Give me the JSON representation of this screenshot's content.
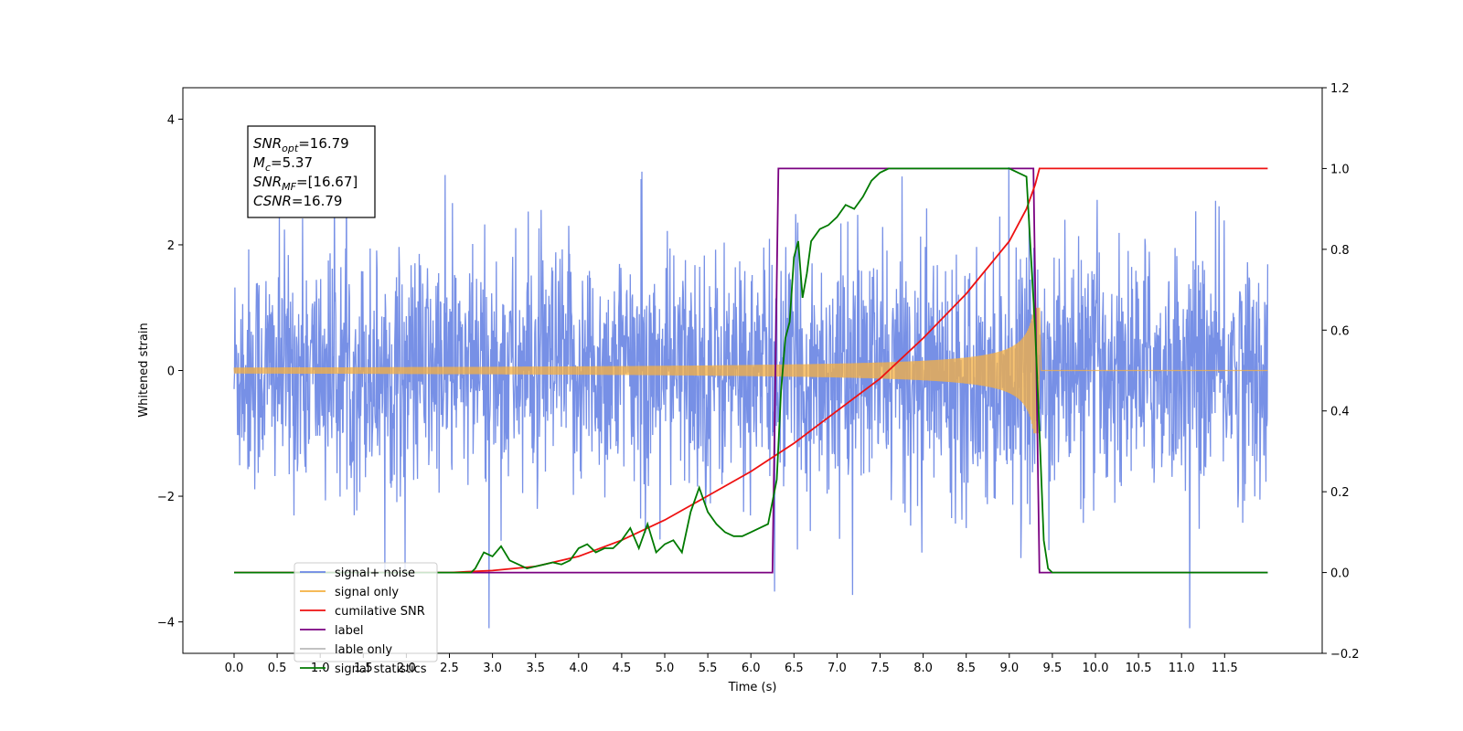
{
  "chart_data": {
    "type": "line",
    "xlabel": "Time (s)",
    "ylabel_left": "Whitened strain",
    "ylabel_right": "",
    "xlim": [
      -0.6,
      12.6
    ],
    "ylim_left": [
      -4.5,
      4.5
    ],
    "ylim_right": [
      -0.2,
      1.2
    ],
    "x_ticks": [
      0.0,
      0.5,
      1.0,
      1.5,
      2.0,
      2.5,
      3.0,
      3.5,
      4.0,
      4.5,
      5.0,
      5.5,
      6.0,
      6.5,
      7.0,
      7.5,
      8.0,
      8.5,
      9.0,
      9.5,
      10.0,
      10.5,
      11.0,
      11.5
    ],
    "x_tick_labels": [
      "0.0",
      "0.5",
      "1.0",
      "1.5",
      "2.0",
      "2.5",
      "3.0",
      "3.5",
      "4.0",
      "4.5",
      "5.0",
      "5.5",
      "6.0",
      "6.5",
      "7.0",
      "7.5",
      "8.0",
      "8.5",
      "9.0",
      "9.5",
      "10.0",
      "10.5",
      "11.0",
      "11.5"
    ],
    "y_ticks_left": [
      -4,
      -2,
      0,
      2,
      4
    ],
    "y_tick_labels_left": [
      "−4",
      "−2",
      "0",
      "2",
      "4"
    ],
    "y_ticks_right": [
      -0.2,
      0.0,
      0.2,
      0.4,
      0.6,
      0.8,
      1.0,
      1.2
    ],
    "y_tick_labels_right": [
      "−0.2",
      "0.0",
      "0.2",
      "0.4",
      "0.6",
      "0.8",
      "1.0",
      "1.2"
    ],
    "grid": false,
    "legend_position": "lower-left",
    "series": [
      {
        "name": "signal+ noise",
        "axis": "left",
        "color": "#6b87e4",
        "kind": "noisy_strain",
        "x_range": [
          0.0,
          12.0
        ],
        "values_description_points": [
          [
            0.0,
            0.0
          ]
        ]
      },
      {
        "name": "signal only",
        "axis": "left",
        "color": "#f5b041",
        "kind": "chirp",
        "x_range": [
          0.0,
          9.35
        ],
        "peak_time": 9.35,
        "peak_amplitude": 1.0
      },
      {
        "name": "cumilative SNR",
        "axis": "right",
        "color": "#ee1111",
        "x": [
          0.0,
          2.5,
          3.0,
          3.5,
          4.0,
          4.5,
          5.0,
          5.5,
          6.0,
          6.5,
          7.0,
          7.5,
          8.0,
          8.5,
          9.0,
          9.2,
          9.3,
          9.35,
          12.0
        ],
        "y": [
          0.0,
          0.0,
          0.005,
          0.015,
          0.04,
          0.08,
          0.13,
          0.19,
          0.25,
          0.32,
          0.4,
          0.48,
          0.58,
          0.69,
          0.82,
          0.9,
          0.96,
          1.0,
          1.0
        ]
      },
      {
        "name": "label",
        "axis": "right",
        "color": "#7a0080",
        "x": [
          0.0,
          6.25,
          6.32,
          9.28,
          9.35,
          12.0
        ],
        "y": [
          0.0,
          0.0,
          1.0,
          1.0,
          0.0,
          0.0
        ]
      },
      {
        "name": "lable only",
        "axis": "right",
        "color": "#b9b9b9",
        "x": [],
        "y": []
      },
      {
        "name": "signal statistics",
        "axis": "right",
        "color": "#007a00",
        "x": [
          0.0,
          2.75,
          2.8,
          2.9,
          3.0,
          3.1,
          3.2,
          3.3,
          3.4,
          3.5,
          3.6,
          3.7,
          3.8,
          3.9,
          4.0,
          4.1,
          4.2,
          4.3,
          4.4,
          4.5,
          4.6,
          4.7,
          4.8,
          4.9,
          5.0,
          5.1,
          5.2,
          5.3,
          5.4,
          5.5,
          5.6,
          5.7,
          5.8,
          5.9,
          6.0,
          6.1,
          6.2,
          6.3,
          6.35,
          6.4,
          6.45,
          6.5,
          6.55,
          6.6,
          6.65,
          6.7,
          6.8,
          6.9,
          7.0,
          7.1,
          7.2,
          7.3,
          7.4,
          7.5,
          7.6,
          7.7,
          7.8,
          7.9,
          8.0,
          8.5,
          9.0,
          9.2,
          9.3,
          9.35,
          9.4,
          9.45,
          9.5,
          9.55,
          9.6,
          12.0
        ],
        "y": [
          0.0,
          0.0,
          0.01,
          0.05,
          0.04,
          0.065,
          0.03,
          0.02,
          0.01,
          0.015,
          0.02,
          0.025,
          0.02,
          0.03,
          0.06,
          0.07,
          0.05,
          0.06,
          0.06,
          0.08,
          0.11,
          0.06,
          0.12,
          0.05,
          0.07,
          0.08,
          0.05,
          0.15,
          0.21,
          0.15,
          0.12,
          0.1,
          0.09,
          0.09,
          0.1,
          0.11,
          0.12,
          0.23,
          0.45,
          0.58,
          0.62,
          0.78,
          0.82,
          0.68,
          0.74,
          0.82,
          0.85,
          0.86,
          0.88,
          0.91,
          0.9,
          0.93,
          0.97,
          0.99,
          1.0,
          1.0,
          1.0,
          1.0,
          1.0,
          1.0,
          1.0,
          0.98,
          0.6,
          0.35,
          0.08,
          0.01,
          0.0,
          0.0,
          0.0,
          0.0
        ]
      }
    ],
    "annotation_box": {
      "lines": [
        {
          "main": "SNR",
          "sub": "opt",
          "rest": "=16.79"
        },
        {
          "main": "M",
          "sub": "c",
          "rest": "=5.37"
        },
        {
          "main": "SNR",
          "sub": "MF",
          "rest": "=[16.67]"
        },
        {
          "main": "CSNR",
          "sub": "",
          "rest": "=16.79"
        }
      ]
    }
  }
}
